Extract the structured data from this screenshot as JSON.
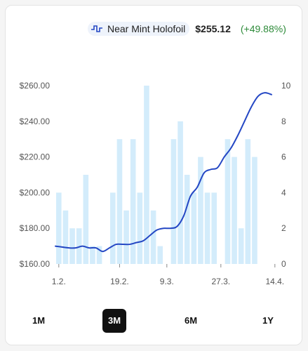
{
  "legend": {
    "icon": "pulse-icon",
    "name": "Near Mint Holofoil",
    "price": "$255.12",
    "change": "(+49.88%)",
    "change_color": "#2e8b3a"
  },
  "ranges": [
    {
      "label": "1M",
      "active": false
    },
    {
      "label": "3M",
      "active": true
    },
    {
      "label": "6M",
      "active": false
    },
    {
      "label": "1Y",
      "active": false
    }
  ],
  "chart_data": {
    "type": "line",
    "line_color": "#2447c4",
    "bar_color": "#d3ecfb",
    "x_ticks": [
      {
        "label": "1.2.",
        "index": 0
      },
      {
        "label": "19.2.",
        "index": 9
      },
      {
        "label": "9.3.",
        "index": 16
      },
      {
        "label": "27.3.",
        "index": 24
      },
      {
        "label": "14.4.",
        "index": 32
      }
    ],
    "y_left": {
      "min": 160,
      "max": 260,
      "ticks": [
        "$260.00",
        "$240.00",
        "$220.00",
        "$200.00",
        "$180.00",
        "$160.00"
      ]
    },
    "y_right": {
      "min": 0,
      "max": 10,
      "ticks": [
        "10",
        "8",
        "6",
        "4",
        "2",
        "0"
      ]
    },
    "volume": [
      4,
      3,
      2,
      2,
      5,
      1,
      1,
      0,
      4,
      7,
      3,
      7,
      4,
      10,
      3,
      1,
      0,
      7,
      8,
      5,
      4,
      6,
      4,
      4,
      0,
      7,
      6,
      2,
      7,
      6
    ],
    "price_points": [
      [
        0,
        170
      ],
      [
        2,
        169
      ],
      [
        3,
        169
      ],
      [
        4,
        170
      ],
      [
        5,
        169
      ],
      [
        6,
        169
      ],
      [
        7,
        167
      ],
      [
        8,
        169
      ],
      [
        9,
        171
      ],
      [
        10,
        171
      ],
      [
        11,
        171
      ],
      [
        12,
        172
      ],
      [
        13,
        173
      ],
      [
        14,
        176
      ],
      [
        15,
        179
      ],
      [
        16,
        180
      ],
      [
        17,
        180
      ],
      [
        18,
        181
      ],
      [
        19,
        187
      ],
      [
        20,
        198
      ],
      [
        21,
        203
      ],
      [
        22,
        211
      ],
      [
        23,
        213
      ],
      [
        24,
        214
      ],
      [
        25,
        220
      ],
      [
        26,
        225
      ],
      [
        27,
        232
      ],
      [
        28,
        240
      ],
      [
        29,
        248
      ],
      [
        30,
        254
      ],
      [
        31,
        256
      ],
      [
        32,
        255
      ]
    ]
  }
}
